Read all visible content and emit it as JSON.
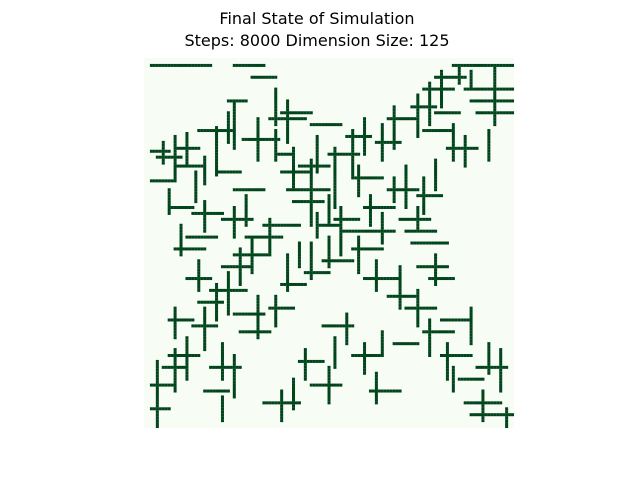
{
  "figure": {
    "title_line1": "Final State of Simulation",
    "title_line2": "Steps: 8000 Dimension Size: 125"
  },
  "chart_data": {
    "type": "heatmap",
    "title": "Final State of Simulation\nSteps: 8000 Dimension Size: 125",
    "grid_size": 125,
    "steps": 8000,
    "colormap": {
      "empty": "#f7fcf5",
      "occupied": "#00441b"
    },
    "axes_visible": false,
    "segments": [
      [
        2,
        2,
        2,
        22
      ],
      [
        2,
        30,
        2,
        40
      ],
      [
        6,
        36,
        6,
        44
      ],
      [
        3,
        106,
        8,
        106
      ],
      [
        2,
        112,
        2,
        124
      ],
      [
        4,
        110,
        10,
        110
      ],
      [
        10,
        108,
        10,
        124
      ],
      [
        3,
        118,
        12,
        118
      ],
      [
        31,
        2,
        31,
        8
      ],
      [
        28,
        6,
        35,
        6
      ],
      [
        33,
        4,
        33,
        12
      ],
      [
        26,
        10,
        40,
        10
      ],
      [
        30,
        10,
        30,
        18
      ],
      [
        25,
        14,
        35,
        14
      ],
      [
        36,
        10,
        36,
        20
      ],
      [
        38,
        17,
        48,
        17
      ],
      [
        41,
        2,
        41,
        10
      ],
      [
        44,
        8,
        52,
        8
      ],
      [
        50,
        8,
        50,
        16
      ],
      [
        33,
        20,
        42,
        20
      ],
      [
        23,
        24,
        39,
        24
      ],
      [
        24,
        18,
        24,
        30
      ],
      [
        38,
        24,
        38,
        32
      ],
      [
        18,
        28,
        28,
        28
      ],
      [
        14,
        30,
        30,
        30
      ],
      [
        14,
        28,
        14,
        34
      ],
      [
        20,
        38,
        34,
        38
      ],
      [
        27,
        33,
        27,
        45
      ],
      [
        24,
        44,
        34,
        44
      ],
      [
        20,
        42,
        20,
        54
      ],
      [
        32,
        44,
        32,
        50
      ],
      [
        30,
        50,
        44,
        50
      ],
      [
        38,
        46,
        38,
        56
      ],
      [
        44,
        48,
        44,
        62
      ],
      [
        40,
        56,
        56,
        56
      ],
      [
        48,
        50,
        48,
        60
      ],
      [
        52,
        58,
        60,
        58
      ],
      [
        56,
        58,
        56,
        66
      ],
      [
        50,
        66,
        66,
        66
      ],
      [
        54,
        64,
        54,
        72
      ],
      [
        58,
        66,
        58,
        84
      ],
      [
        60,
        72,
        72,
        72
      ],
      [
        64,
        70,
        64,
        80
      ],
      [
        68,
        78,
        78,
        78
      ],
      [
        74,
        74,
        74,
        86
      ],
      [
        70,
        86,
        84,
        86
      ],
      [
        80,
        82,
        80,
        92
      ],
      [
        78,
        92,
        90,
        92
      ],
      [
        84,
        88,
        84,
        98
      ],
      [
        88,
        96,
        100,
        96
      ],
      [
        92,
        94,
        92,
        104
      ],
      [
        96,
        102,
        108,
        102
      ],
      [
        100,
        100,
        100,
        110
      ],
      [
        104,
        104,
        112,
        104
      ],
      [
        108,
        106,
        108,
        114
      ],
      [
        88,
        100,
        88,
        110
      ],
      [
        84,
        110,
        96,
        110
      ],
      [
        118,
        2,
        118,
        8
      ],
      [
        102,
        4,
        124,
        4
      ],
      [
        110,
        2,
        110,
        10
      ],
      [
        104,
        6,
        104,
        14
      ],
      [
        98,
        10,
        112,
        10
      ],
      [
        100,
        8,
        100,
        18
      ],
      [
        94,
        14,
        108,
        14
      ],
      [
        90,
        16,
        90,
        24
      ],
      [
        84,
        20,
        98,
        20
      ],
      [
        82,
        18,
        82,
        26
      ],
      [
        76,
        24,
        88,
        24
      ],
      [
        78,
        22,
        78,
        34
      ],
      [
        72,
        28,
        86,
        28
      ],
      [
        70,
        26,
        70,
        36
      ],
      [
        64,
        32,
        76,
        32
      ],
      [
        66,
        30,
        66,
        42
      ],
      [
        60,
        36,
        72,
        36
      ],
      [
        60,
        34,
        60,
        46
      ],
      [
        54,
        42,
        66,
        42
      ],
      [
        56,
        40,
        56,
        52
      ],
      [
        86,
        30,
        86,
        40
      ],
      [
        80,
        38,
        94,
        38
      ],
      [
        92,
        32,
        92,
        42
      ],
      [
        96,
        26,
        108,
        26
      ],
      [
        104,
        22,
        104,
        32
      ],
      [
        100,
        30,
        114,
        30
      ],
      [
        112,
        20,
        112,
        28
      ],
      [
        114,
        26,
        122,
        26
      ],
      [
        80,
        44,
        90,
        44
      ],
      [
        84,
        42,
        84,
        50
      ],
      [
        66,
        48,
        78,
        48
      ],
      [
        76,
        46,
        76,
        54
      ],
      [
        62,
        52,
        70,
        52
      ],
      [
        50,
        30,
        60,
        30
      ],
      [
        54,
        26,
        54,
        36
      ],
      [
        46,
        34,
        56,
        34
      ],
      [
        44,
        30,
        44,
        40
      ],
      [
        62,
        56,
        74,
        56
      ],
      [
        72,
        54,
        72,
        62
      ],
      [
        60,
        62,
        70,
        62
      ],
      [
        68,
        60,
        68,
        70
      ],
      [
        46,
        62,
        56,
        62
      ],
      [
        30,
        64,
        50,
        64
      ],
      [
        32,
        62,
        32,
        72
      ],
      [
        24,
        70,
        40,
        70
      ],
      [
        26,
        68,
        26,
        76
      ],
      [
        20,
        74,
        32,
        74
      ],
      [
        36,
        72,
        46,
        72
      ],
      [
        40,
        70,
        40,
        80
      ],
      [
        46,
        76,
        56,
        76
      ],
      [
        50,
        74,
        50,
        84
      ],
      [
        52,
        80,
        62,
        80
      ],
      [
        22,
        80,
        34,
        80
      ],
      [
        28,
        78,
        28,
        86
      ],
      [
        16,
        84,
        30,
        84
      ],
      [
        20,
        82,
        20,
        92
      ],
      [
        12,
        92,
        26,
        92
      ],
      [
        16,
        90,
        16,
        98
      ],
      [
        8,
        96,
        22,
        96
      ],
      [
        10,
        94,
        10,
        104
      ],
      [
        4,
        100,
        16,
        100
      ],
      [
        6,
        98,
        6,
        108
      ],
      [
        18,
        98,
        18,
        106
      ],
      [
        24,
        94,
        24,
        104
      ],
      [
        22,
        104,
        34,
        104
      ],
      [
        30,
        102,
        30,
        112
      ],
      [
        26,
        108,
        36,
        108
      ],
      [
        40,
        84,
        48,
        84
      ],
      [
        44,
        82,
        44,
        92
      ],
      [
        36,
        88,
        50,
        88
      ],
      [
        40,
        94,
        52,
        94
      ],
      [
        46,
        92,
        46,
        100
      ],
      [
        34,
        98,
        44,
        98
      ],
      [
        2,
        104,
        2,
        116
      ],
      [
        14,
        110,
        14,
        124
      ],
      [
        8,
        118,
        22,
        118
      ],
      [
        18,
        112,
        18,
        124
      ],
      [
        24,
        116,
        34,
        116
      ],
      [
        54,
        86,
        54,
        96
      ],
      [
        50,
        92,
        58,
        92
      ],
      [
        58,
        88,
        58,
        98
      ],
      [
        70,
        92,
        70,
        102
      ],
      [
        66,
        98,
        76,
        98
      ],
      [
        74,
        96,
        74,
        104
      ],
      [
        62,
        90,
        62,
        102
      ],
      [
        96,
        116,
        106,
        116
      ],
      [
        104,
        112,
        104,
        122
      ],
      [
        98,
        120,
        112,
        120
      ],
      [
        116,
        108,
        116,
        120
      ],
      [
        112,
        114,
        122,
        114
      ],
      [
        120,
        110,
        120,
        124
      ],
      [
        118,
        122,
        124,
        122
      ],
      [
        34,
        56,
        46,
        56
      ],
      [
        36,
        52,
        36,
        62
      ],
      [
        26,
        58,
        38,
        58
      ],
      [
        22,
        56,
        22,
        66
      ],
      [
        14,
        48,
        28,
        48
      ],
      [
        18,
        46,
        18,
        56
      ],
      [
        10,
        44,
        22,
        44
      ],
      [
        48,
        20,
        58,
        20
      ],
      [
        52,
        16,
        52,
        26
      ],
      [
        60,
        14,
        60,
        24
      ],
      [
        56,
        12,
        66,
        12
      ],
      [
        64,
        10,
        64,
        20
      ],
      [
        68,
        18,
        78,
        18
      ],
      [
        74,
        14,
        74,
        22
      ],
      [
        88,
        8,
        88,
        16
      ],
      [
        84,
        10,
        94,
        10
      ],
      [
        112,
        46,
        122,
        46
      ],
      [
        116,
        40,
        116,
        52
      ],
      [
        108,
        50,
        118,
        50
      ],
      [
        110,
        56,
        110,
        66
      ],
      [
        104,
        62,
        116,
        62
      ],
      [
        98,
        54,
        108,
        54
      ],
      [
        102,
        52,
        102,
        60
      ],
      [
        94,
        64,
        104,
        64
      ],
      [
        90,
        60,
        90,
        70
      ],
      [
        86,
        68,
        96,
        68
      ],
      [
        96,
        74,
        106,
        74
      ],
      [
        100,
        70,
        100,
        80
      ],
      [
        106,
        78,
        116,
        78
      ],
      [
        112,
        76,
        112,
        86
      ],
      [
        92,
        80,
        100,
        80
      ],
      [
        96,
        84,
        96,
        92
      ]
    ]
  }
}
